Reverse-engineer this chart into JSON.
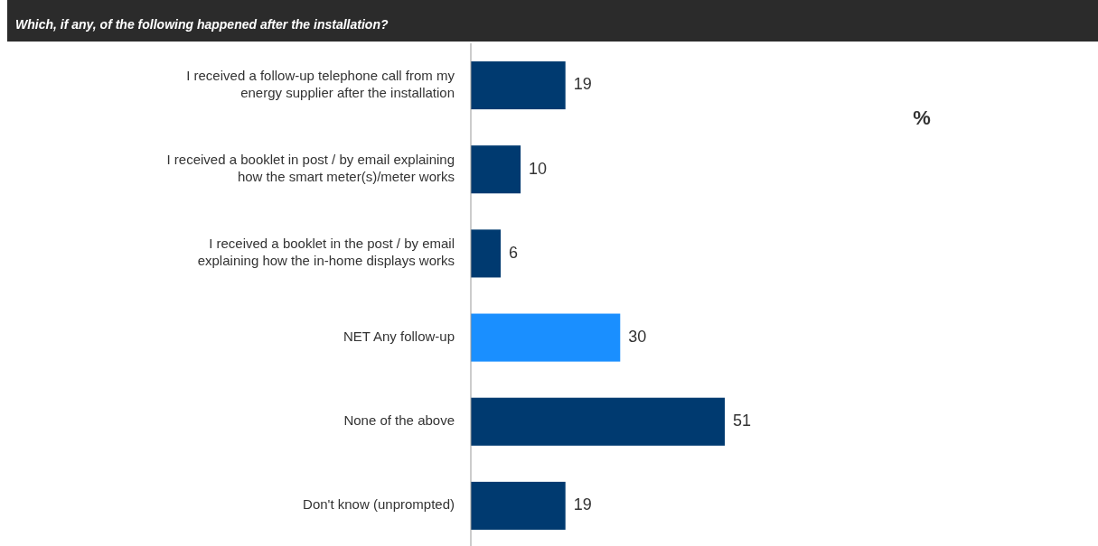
{
  "chart_data": {
    "type": "bar",
    "orientation": "horizontal",
    "title": "Which, if any, of the following happened after the installation?",
    "categories": [
      "I received a follow-up telephone call from my energy supplier after the installation",
      "I received a booklet in post / by email explaining how the smart meter(s)/meter works",
      "I received a booklet in the post / by email explaining how the in-home displays works",
      "NET Any follow-up",
      "None of the above",
      "Don't know (unprompted)"
    ],
    "values": [
      19,
      10,
      6,
      30,
      51,
      19
    ],
    "colors": [
      "#003a70",
      "#003a70",
      "#003a70",
      "#1a8fff",
      "#003a70",
      "#003a70"
    ],
    "data_labels": true,
    "annotations": [
      "%"
    ]
  }
}
